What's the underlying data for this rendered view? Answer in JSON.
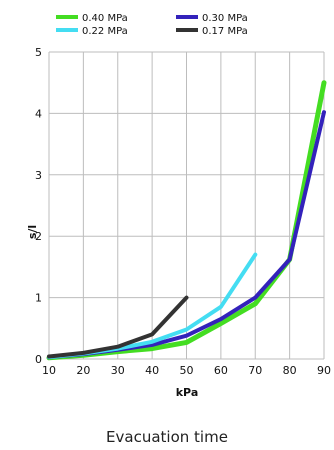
{
  "caption": "Evacuation time",
  "chart_data": {
    "type": "line",
    "xlabel": "kPa",
    "ylabel": "s/l",
    "xlim": [
      10,
      90
    ],
    "ylim": [
      0,
      5
    ],
    "x_ticks": [
      "10",
      "20",
      "30",
      "40",
      "50",
      "60",
      "70",
      "80",
      "90"
    ],
    "y_ticks": [
      "0",
      "1",
      "2",
      "3",
      "4",
      "5"
    ],
    "grid": true,
    "legend_position": "top",
    "series": [
      {
        "name": "0.40 MPa",
        "color": "#44dd22",
        "x": [
          10,
          20,
          30,
          40,
          50,
          60,
          70,
          80,
          90
        ],
        "y": [
          0.02,
          0.06,
          0.12,
          0.17,
          0.27,
          0.58,
          0.9,
          1.62,
          4.5
        ]
      },
      {
        "name": "0.30 MPa",
        "color": "#3322bb",
        "x": [
          10,
          20,
          30,
          40,
          50,
          60,
          70,
          80,
          90
        ],
        "y": [
          0.03,
          0.08,
          0.15,
          0.23,
          0.38,
          0.65,
          1.0,
          1.62,
          4.02
        ]
      },
      {
        "name": "0.22 MPa",
        "color": "#44ddf2",
        "x": [
          10,
          20,
          30,
          40,
          50,
          60,
          70
        ],
        "y": [
          0.03,
          0.09,
          0.17,
          0.28,
          0.48,
          0.85,
          1.7
        ]
      },
      {
        "name": "0.17 MPa",
        "color": "#333333",
        "x": [
          10,
          20,
          30,
          40,
          50
        ],
        "y": [
          0.04,
          0.1,
          0.2,
          0.4,
          1.0
        ]
      }
    ]
  }
}
